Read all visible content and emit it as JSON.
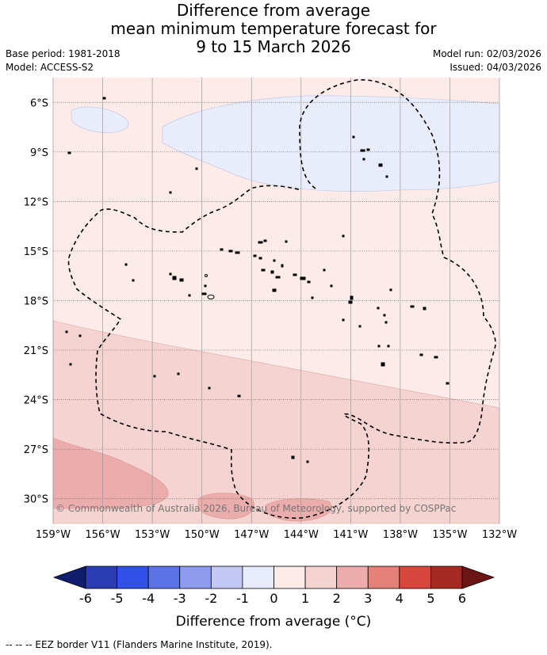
{
  "title": {
    "line1": "Difference from average",
    "line2": "mean minimum temperature forecast for",
    "line3": "9 to 15 March 2026"
  },
  "meta": {
    "base_period": "Base period: 1981-2018",
    "model": "Model: ACCESS-S2",
    "model_run": "Model run: 02/03/2026",
    "issued": "Issued: 04/03/2026"
  },
  "map": {
    "copyright": "© Commonwealth of Australia 2026, Bureau of Meteorology, supported by COSPPac",
    "lat_labels": [
      "6°S",
      "9°S",
      "12°S",
      "15°S",
      "18°S",
      "21°S",
      "24°S",
      "27°S",
      "30°S"
    ],
    "lon_labels": [
      "159°W",
      "156°W",
      "153°W",
      "150°W",
      "147°W",
      "144°W",
      "141°W",
      "138°W",
      "135°W",
      "132°W"
    ],
    "lon_range": [
      -159,
      -132
    ],
    "lat_range": [
      -31.5,
      -4.5
    ],
    "band_colors": {
      "neg_0_1": "#e8ecfb",
      "pos_0_1": "#fcebe9",
      "pos_1_2": "#f4d3d1",
      "pos_2_3": "#ebadab"
    }
  },
  "colorbar": {
    "label": "Difference from average (°C)",
    "ticks": [
      "-6",
      "-5",
      "-4",
      "-3",
      "-2",
      "-1",
      "0",
      "1",
      "2",
      "3",
      "4",
      "5",
      "6"
    ],
    "colors": [
      "#101d6e",
      "#2b3db1",
      "#3050e6",
      "#5b73e6",
      "#8e9ced",
      "#c3c8f4",
      "#e8ebfb",
      "#fcebe9",
      "#f4d3d1",
      "#ebadab",
      "#e58179",
      "#d9463e",
      "#a52a22",
      "#6d1414"
    ]
  },
  "footnote": "-- -- -- EEZ border V11 (Flanders Marine Institute, 2019)."
}
